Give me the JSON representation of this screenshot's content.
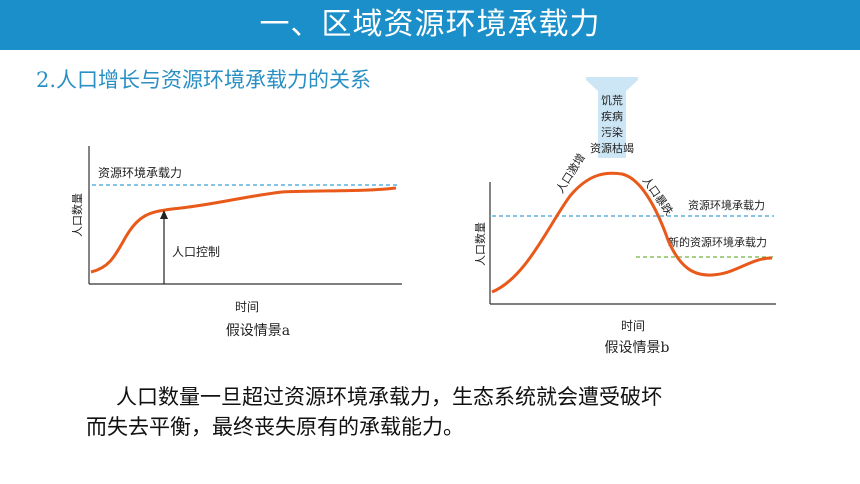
{
  "header": {
    "title": "一、区域资源环境承载力"
  },
  "subtitle": "2.人口增长与资源环境承载力的关系",
  "diagram_a": {
    "capacity_label": "资源环境承载力",
    "control_label": "人口控制",
    "y_label": "人口数量",
    "x_label": "时间",
    "caption": "假设情景a"
  },
  "diagram_b": {
    "stressors": [
      "饥荒",
      "疾病",
      "污染",
      "资源枯竭"
    ],
    "rise_label": "人口激增",
    "fall_label": "人口暴跌",
    "capacity_label": "资源环境承载力",
    "new_capacity_label": "新的资源环境承载力",
    "y_label": "人口数量",
    "x_label": "时间",
    "caption": "假设情景b"
  },
  "colors": {
    "header_bg": "#1b8fc9",
    "curve": "#e8591a",
    "capacity_line": "#3ba0d8",
    "new_capacity_line": "#6fb43f",
    "arrow": "#cde6f5"
  },
  "body_text": {
    "line1": "人口数量一旦超过资源环境承载力，生态系统就会遭受破坏",
    "line2": "而失去平衡，最终丧失原有的承载能力。"
  }
}
